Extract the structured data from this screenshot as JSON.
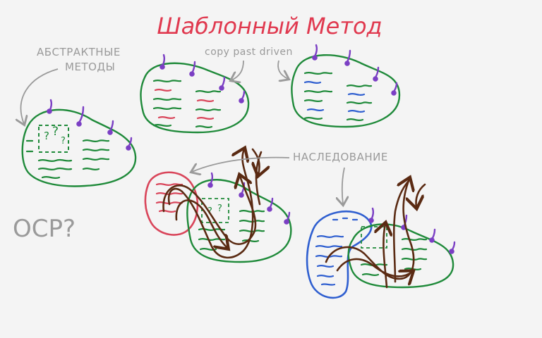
{
  "title": "Шаблонный Метод",
  "labels": {
    "abstract_line1": "АБСТРАКТНЫЕ",
    "abstract_line2": "МЕТОДЫ",
    "copy_paste": "copy past driven",
    "inheritance": "НАСЛЕДОВАНИЕ",
    "ocp": "OCP?",
    "question_marks": "?",
    "question_marks_small": "?"
  },
  "colors": {
    "background": "#f4f4f4",
    "title": "#e0394f",
    "annotation": "#9a9a9a",
    "blob_outline": "#1f8a3a",
    "code_green": "#1f8a3a",
    "code_red": "#d9455a",
    "code_blue": "#2f5fd0",
    "hook": "#7b3fc4",
    "arrow_brown": "#5a2a12",
    "subclass_red": "#d9455a",
    "subclass_blue": "#2f5fd0"
  }
}
